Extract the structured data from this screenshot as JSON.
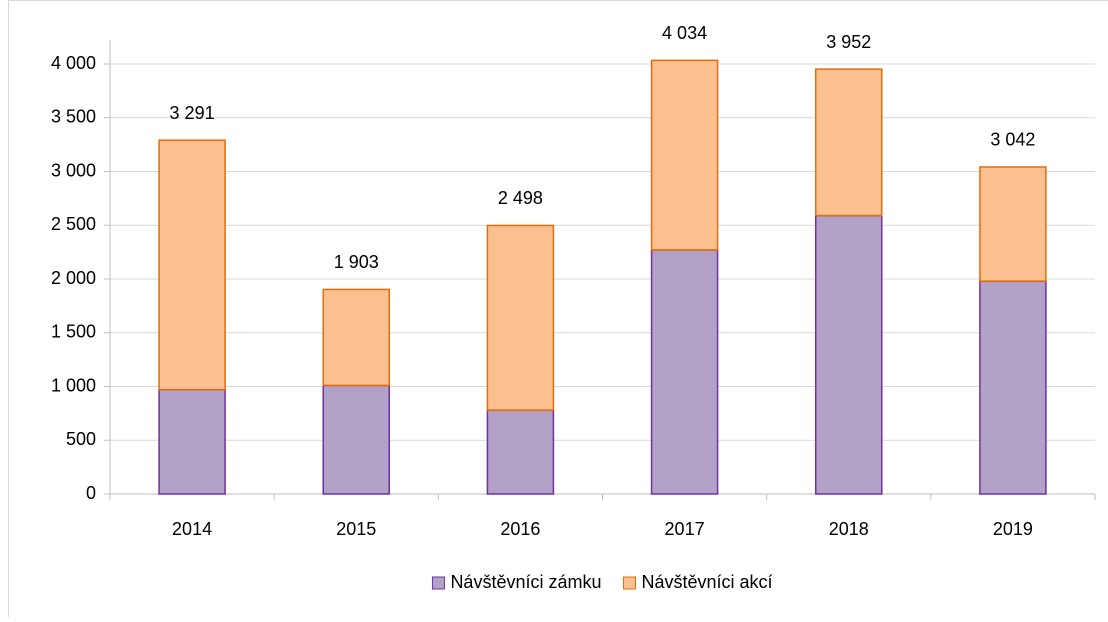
{
  "chart_data": {
    "type": "stacked_bar",
    "categories": [
      "2014",
      "2015",
      "2016",
      "2017",
      "2018",
      "2019"
    ],
    "series": [
      {
        "name": "Návštěvníci zámku",
        "color": "#b3a2c7",
        "stroke": "#7030a0",
        "values": [
          970,
          1010,
          780,
          2270,
          2590,
          1980
        ]
      },
      {
        "name": "Návštěvníci akcí",
        "color": "#fac090",
        "stroke": "#e46c0a",
        "values": [
          2321,
          893,
          1718,
          1764,
          1362,
          1062
        ]
      }
    ],
    "totals": [
      3291,
      1903,
      2498,
      4034,
      3952,
      3042
    ],
    "total_labels": [
      "3 291",
      "1 903",
      "2 498",
      "4 034",
      "3 952",
      "3 042"
    ],
    "ylim": [
      0,
      4000
    ],
    "yticks": [
      0,
      500,
      {
        "value": 1000,
        "label": "1 000"
      },
      {
        "value": 1500,
        "label": "1 500"
      },
      {
        "value": 2000,
        "label": "2 000"
      },
      {
        "value": 2500,
        "label": "2 500"
      },
      {
        "value": 3000,
        "label": "3 000"
      },
      {
        "value": 3500,
        "label": "3 500"
      },
      {
        "value": 4000,
        "label": "4 000"
      }
    ],
    "grid": true
  }
}
